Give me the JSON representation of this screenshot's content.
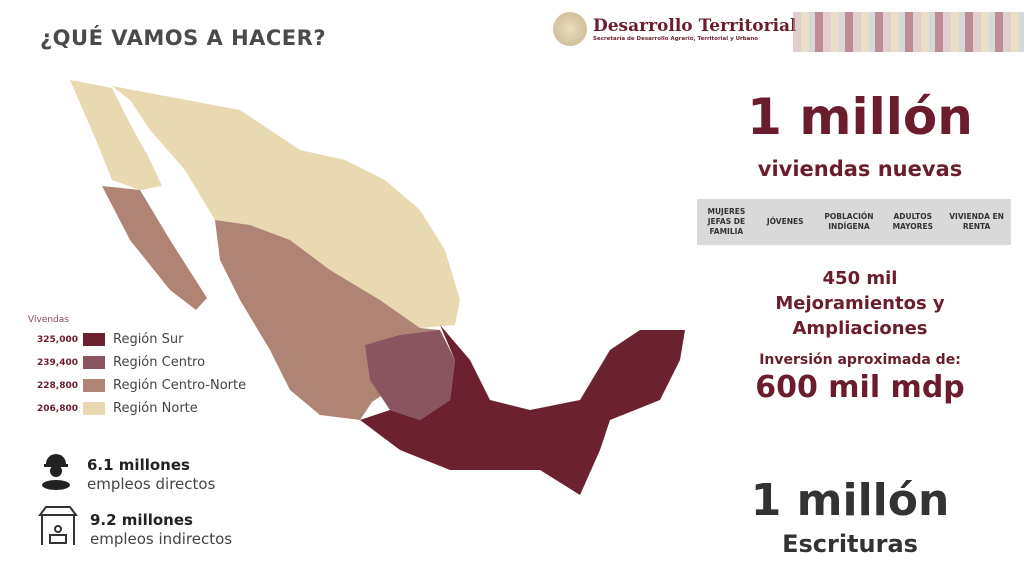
{
  "header": {
    "title": "¿QUÉ VAMOS A HACER?",
    "brand_name": "Desarrollo Territorial",
    "brand_subtitle": "Secretaría de Desarrollo Agrario, Territorial y Urbano"
  },
  "legend": {
    "title": "Vivendas",
    "items": [
      {
        "value": "325,000",
        "label": "Región Sur",
        "color": "#6b2130"
      },
      {
        "value": "239,400",
        "label": "Región Centro",
        "color": "#8a5560"
      },
      {
        "value": "228,800",
        "label": "Región Centro-Norte",
        "color": "#b08475"
      },
      {
        "value": "206,800",
        "label": "Región Norte",
        "color": "#e8d9b0"
      }
    ]
  },
  "stats": [
    {
      "value": "6.1 millones",
      "label": "empleos directos",
      "icon": "worker-icon"
    },
    {
      "value": "9.2 millones",
      "label": "empleos indirectos",
      "icon": "shop-icon"
    }
  ],
  "right": {
    "headline1": "1 millón",
    "sub1": "viviendas nuevas",
    "categories": [
      "MUJERES JEFAS DE FAMILIA",
      "JÓVENES",
      "POBLACIÓN INDÍGENA",
      "ADULTOS MAYORES",
      "VIVIENDA EN RENTA"
    ],
    "improvements": "450 mil",
    "improvements_label1": "Mejoramientos y",
    "improvements_label2": "Ampliaciones",
    "investment_label": "Inversión aproximada de:",
    "investment": "600 mil mdp",
    "headline2": "1 millón",
    "sub2": "Escrituras"
  },
  "colors": {
    "accent": "#6b1d2e"
  }
}
